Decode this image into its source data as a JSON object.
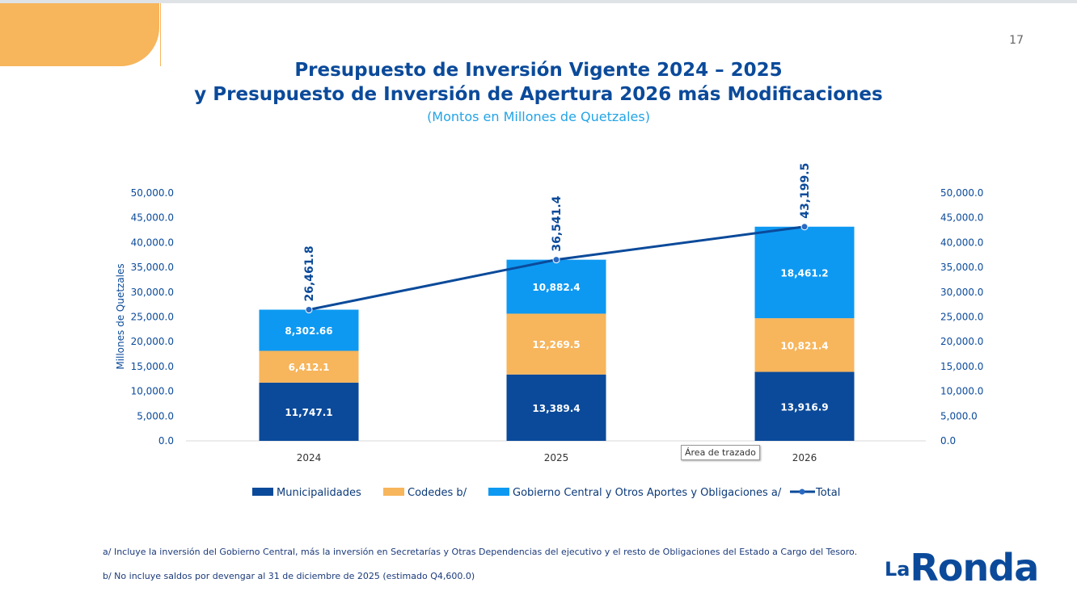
{
  "page_number": "17",
  "chart_data": {
    "type": "bar",
    "title": "Presupuesto de Inversión Vigente 2024 – 2025",
    "title_line2": "y Presupuesto de Inversión de Apertura 2026 más Modificaciones",
    "subtitle": "(Montos en Millones de Quetzales)",
    "ylabel": "Millones de Quetzales",
    "ylim": [
      0,
      50000
    ],
    "yticks": [
      "0.0",
      "5,000.0",
      "10,000.0",
      "15,000.0",
      "20,000.0",
      "25,000.0",
      "30,000.0",
      "35,000.0",
      "40,000.0",
      "45,000.0",
      "50,000.0"
    ],
    "categories": [
      "2024",
      "2025",
      "2026"
    ],
    "stacked": true,
    "series": [
      {
        "name": "Municipalidades",
        "color": "#0b4a9a",
        "values": [
          11747.1,
          13389.4,
          13916.9
        ],
        "labels": [
          "11,747.1",
          "13,389.4",
          "13,916.9"
        ]
      },
      {
        "name": "Codedes b/",
        "color": "#f7b55c",
        "values": [
          6412.1,
          12269.5,
          10821.4
        ],
        "labels": [
          "6,412.1",
          "12,269.5",
          "10,821.4"
        ]
      },
      {
        "name": "Gobierno Central y Otros Aportes y Obligaciones a/",
        "color": "#0d99f2",
        "values": [
          8302.66,
          10882.4,
          18461.2
        ],
        "labels": [
          "8,302.66",
          "10,882.4",
          "18,461.2"
        ]
      }
    ],
    "line": {
      "name": "Total",
      "type": "line",
      "color": "#0b4a9a",
      "values": [
        26461.8,
        36541.4,
        43199.5
      ],
      "labels": [
        "26,461.8",
        "36,541.4",
        "43,199.5"
      ]
    },
    "legend_position": "bottom",
    "grid": false
  },
  "tooltip": "Área de trazado",
  "notes": [
    "a/ Incluye la inversión del Gobierno Central, más la inversión en Secretarías y Otras Dependencias del ejecutivo y el resto de Obligaciones del Estado a Cargo del Tesoro.",
    "b/ No incluye saldos por devengar al 31 de diciembre de 2025 (estimado Q4,600.0)"
  ],
  "logo": "La Ronda"
}
